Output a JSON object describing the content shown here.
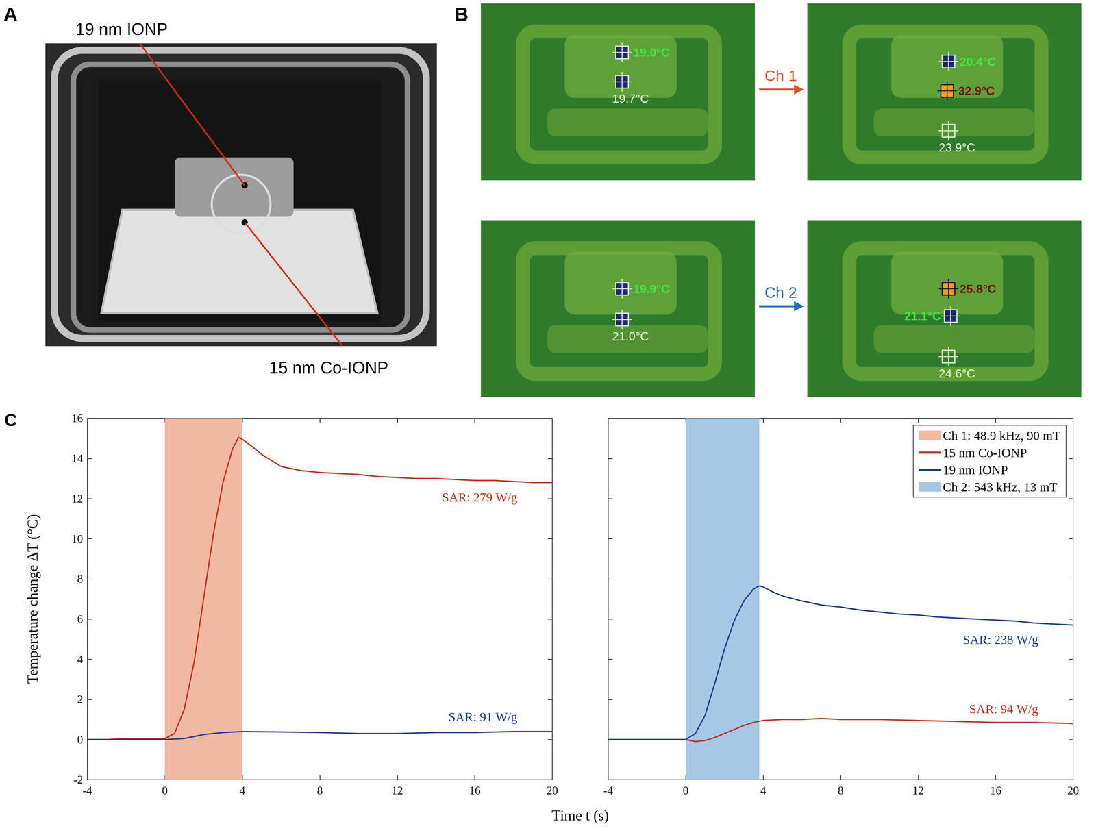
{
  "panels": {
    "A": {
      "letter": "A",
      "labels": [
        "19 nm IONP",
        "15 nm Co-IONP"
      ]
    },
    "B": {
      "letter": "B",
      "rows": [
        {
          "channel": "Ch 1",
          "before": [
            "19.0°C",
            "19.7°C"
          ],
          "after": [
            "20.4°C",
            "32.9°C",
            "23.9°C"
          ]
        },
        {
          "channel": "Ch 2",
          "before": [
            "19.9°C",
            "21.0°C"
          ],
          "after": [
            "25.8°C",
            "21.1°C",
            "24.6°C"
          ]
        }
      ]
    },
    "C": {
      "letter": "C",
      "xlabel": "Time t (s)"
    }
  },
  "chart_data": [
    {
      "type": "line",
      "ylabel": "Temperature change ΔT (°C)",
      "xlim": [
        -4,
        20
      ],
      "xticks": [
        -4,
        0,
        4,
        8,
        12,
        16,
        20
      ],
      "ylim": [
        -2,
        16
      ],
      "yticks": [
        -2,
        0,
        2,
        4,
        6,
        8,
        10,
        12,
        14,
        16
      ],
      "grid": false,
      "bands": [
        {
          "name": "Ch 1: 48.9 kHz, 90 mT",
          "color": "#f2b9a2",
          "x": [
            0,
            4
          ]
        }
      ],
      "series": [
        {
          "name": "15 nm Co-IONP",
          "color": "#bf3522",
          "annotation": "SAR: 279 W/g",
          "x": [
            -4,
            -3,
            -2,
            -1,
            0,
            0.5,
            1,
            1.5,
            2,
            2.5,
            3,
            3.5,
            3.8,
            4,
            4.5,
            5,
            5.5,
            6,
            7,
            8,
            9,
            10,
            11,
            12,
            13,
            14,
            15,
            16,
            17,
            18,
            19,
            20
          ],
          "values": [
            0,
            0,
            0.05,
            0.05,
            0.05,
            0.3,
            1.5,
            3.8,
            7.0,
            10.2,
            12.8,
            14.5,
            15.05,
            14.95,
            14.6,
            14.2,
            13.9,
            13.6,
            13.4,
            13.3,
            13.25,
            13.2,
            13.1,
            13.05,
            13.0,
            13.0,
            12.95,
            12.9,
            12.9,
            12.85,
            12.8,
            12.8
          ]
        },
        {
          "name": "19 nm IONP",
          "color": "#1f3f8f",
          "annotation": "SAR: 91 W/g",
          "x": [
            -4,
            -2,
            0,
            1,
            1.5,
            2,
            2.5,
            3,
            4,
            6,
            8,
            10,
            12,
            14,
            16,
            18,
            20
          ],
          "values": [
            0,
            0,
            0,
            0.05,
            0.15,
            0.25,
            0.3,
            0.35,
            0.4,
            0.38,
            0.35,
            0.3,
            0.3,
            0.35,
            0.35,
            0.4,
            0.4
          ]
        }
      ]
    },
    {
      "type": "line",
      "xlim": [
        -4,
        20
      ],
      "xticks": [
        -4,
        0,
        4,
        8,
        12,
        16,
        20
      ],
      "ylim": [
        -2,
        16
      ],
      "yticks": [
        -2,
        0,
        2,
        4,
        6,
        8,
        10,
        12,
        14,
        16
      ],
      "grid": false,
      "tick_labels": "x",
      "legend": "upper right",
      "bands": [
        {
          "name": "Ch 2: 543 kHz, 13 mT",
          "color": "#a7c8e5",
          "x": [
            0,
            3.8
          ]
        }
      ],
      "series": [
        {
          "name": "15 nm Co-IONP",
          "color": "#bf3522",
          "annotation": "SAR: 94 W/g",
          "x": [
            -4,
            -2,
            0,
            0.5,
            1,
            1.5,
            2,
            2.5,
            3,
            3.5,
            4,
            5,
            6,
            7,
            8,
            10,
            12,
            14,
            16,
            18,
            20
          ],
          "values": [
            0,
            0,
            0,
            -0.1,
            -0.05,
            0.1,
            0.3,
            0.5,
            0.7,
            0.85,
            0.95,
            1.0,
            1.0,
            1.05,
            1.0,
            1.0,
            0.95,
            0.9,
            0.85,
            0.85,
            0.8
          ]
        },
        {
          "name": "19 nm IONP",
          "color": "#1f3f8f",
          "annotation": "SAR: 238 W/g",
          "x": [
            -4,
            -2,
            0,
            0.5,
            1,
            1.5,
            2,
            2.5,
            3,
            3.5,
            3.8,
            4,
            4.5,
            5,
            6,
            7,
            8,
            9,
            10,
            11,
            12,
            13,
            14,
            15,
            16,
            17,
            18,
            19,
            20
          ],
          "values": [
            0,
            0,
            0,
            0.3,
            1.2,
            2.8,
            4.5,
            5.9,
            6.9,
            7.5,
            7.65,
            7.6,
            7.35,
            7.15,
            6.9,
            6.7,
            6.6,
            6.45,
            6.35,
            6.25,
            6.2,
            6.1,
            6.05,
            6.0,
            5.95,
            5.9,
            5.8,
            5.75,
            5.7
          ]
        }
      ]
    }
  ]
}
